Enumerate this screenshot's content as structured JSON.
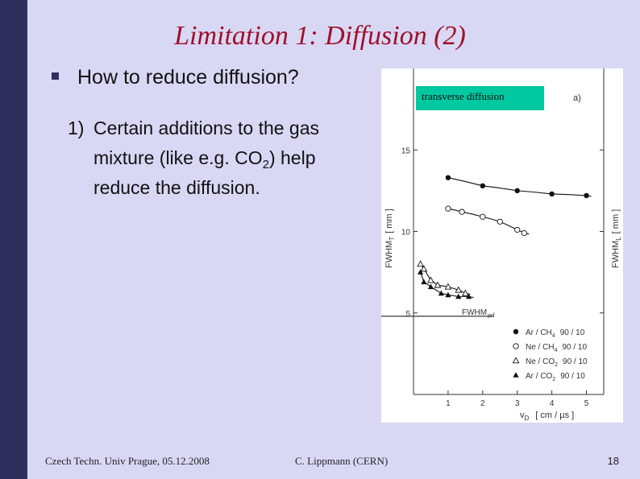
{
  "slide": {
    "title": "Limitation 1: Diffusion (2)",
    "bullet": "How to reduce diffusion?",
    "point_number": "1)",
    "point_line1": "Certain additions to the gas",
    "point_line2_pre": "mixture (like e.g. CO",
    "point_line2_sub": "2",
    "point_line2_post": ") help",
    "point_line3": "reduce the diffusion.",
    "footer_left": "Czech Techn. Univ Prague, 05.12.2008",
    "footer_center": "C. Lippmann (CERN)",
    "page_number": "18",
    "colors": {
      "title": "#a0102a",
      "sidebar": "#2f2f5e",
      "background": "#d8d8f5",
      "label_bg": "#00c8a0"
    }
  },
  "figure": {
    "label": "transverse diffusion",
    "panel_tag": "a)",
    "ylabel_left_main": "FWHM",
    "ylabel_left_sub": "T",
    "ylabel_left_unit": "[ mm ]",
    "ylabel_right_main": "FWHM",
    "ylabel_right_sub": "L",
    "ylabel_right_unit": "[ mm ]",
    "xlabel_main": "v",
    "xlabel_sub": "D",
    "xlabel_unit": "[ cm / µs ]",
    "prf_label_main": "FWHM",
    "prf_label_sub": "prf",
    "legend": [
      {
        "marker": "filled-circle",
        "gas": "Ar / CH",
        "sub": "4",
        "mix": "90 / 10"
      },
      {
        "marker": "open-circle",
        "gas": "Ne / CH",
        "sub": "4",
        "mix": "90 / 10"
      },
      {
        "marker": "open-triangle",
        "gas": "Ne / CO",
        "sub": "2",
        "mix": "90 / 10"
      },
      {
        "marker": "filled-triangle",
        "gas": "Ar / CO",
        "sub": "2",
        "mix": "90 / 10"
      }
    ]
  },
  "chart_data": {
    "type": "scatter",
    "xlim": [
      0,
      5.5
    ],
    "ylim": [
      0,
      20
    ],
    "x_ticks": [
      "1",
      "2",
      "3",
      "4",
      "5"
    ],
    "y_ticks": [
      "5",
      "10",
      "15"
    ],
    "prf_line_y": 4.8,
    "series": [
      {
        "name": "Ar / CH4 90 / 10",
        "marker": "filled-circle",
        "x": [
          1.0,
          2.0,
          3.0,
          4.0,
          5.0
        ],
        "y": [
          13.3,
          12.8,
          12.5,
          12.3,
          12.2
        ]
      },
      {
        "name": "Ne / CH4 90 / 10",
        "marker": "open-circle",
        "x": [
          1.0,
          1.4,
          2.0,
          2.5,
          3.0,
          3.2
        ],
        "y": [
          11.4,
          11.2,
          10.9,
          10.6,
          10.1,
          9.9
        ]
      },
      {
        "name": "Ne / CO2 90 / 10",
        "marker": "open-triangle",
        "x": [
          0.2,
          0.3,
          0.5,
          0.7,
          1.0,
          1.3,
          1.5
        ],
        "y": [
          8.0,
          7.7,
          7.0,
          6.7,
          6.6,
          6.4,
          6.2
        ]
      },
      {
        "name": "Ar / CO2 90 / 10",
        "marker": "filled-triangle",
        "x": [
          0.2,
          0.3,
          0.5,
          0.8,
          1.0,
          1.3,
          1.6
        ],
        "y": [
          7.5,
          6.9,
          6.6,
          6.2,
          6.1,
          6.0,
          6.0
        ]
      }
    ]
  }
}
